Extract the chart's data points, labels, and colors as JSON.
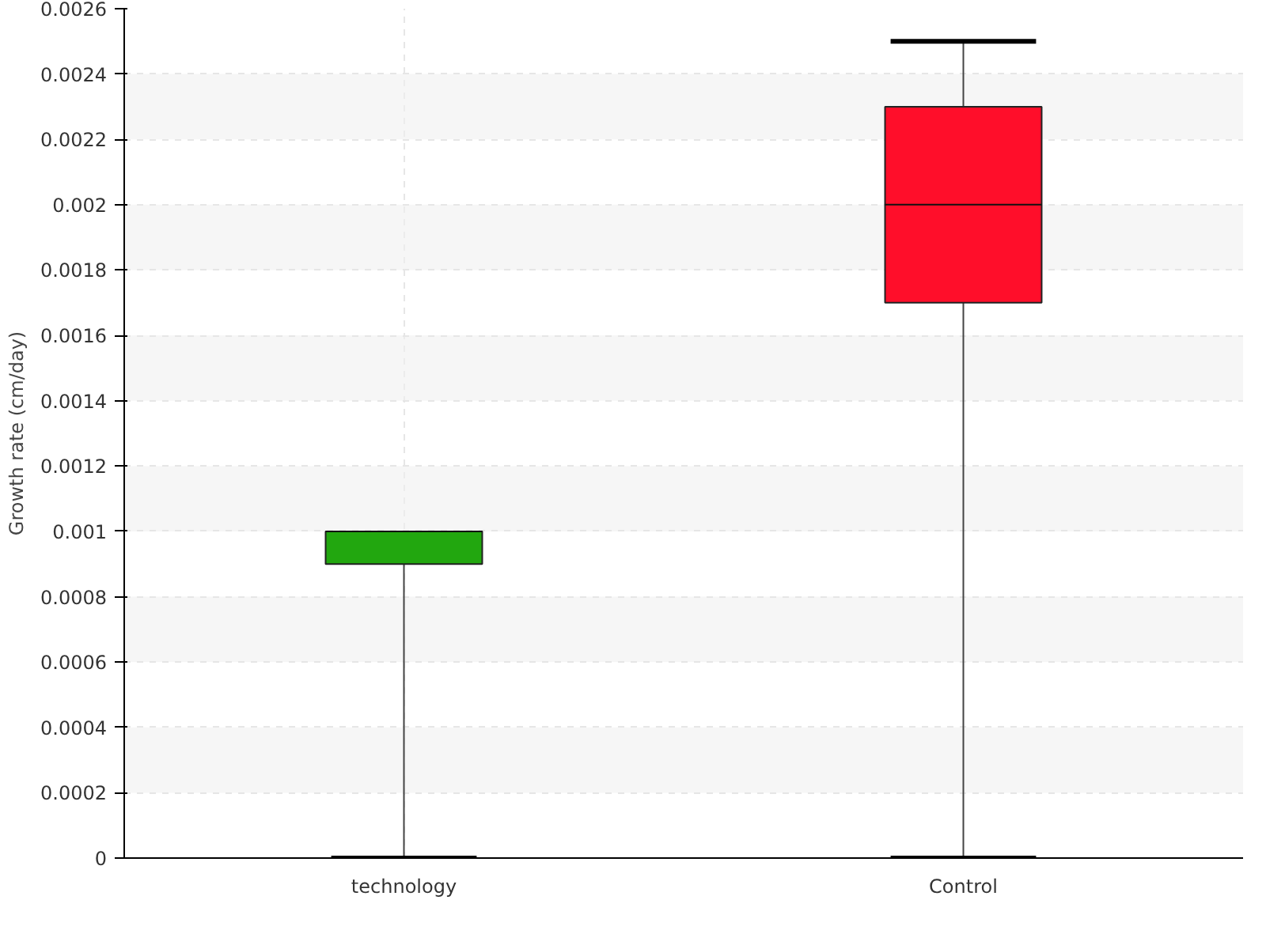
{
  "chart_data": {
    "type": "box",
    "ylabel": "Growth rate (cm/day)",
    "categories": [
      "technology",
      "Control"
    ],
    "boxes": [
      {
        "low": 0,
        "q1": 0.0009,
        "median": 0.001,
        "q3": 0.001,
        "high": 0.001
      },
      {
        "low": 0,
        "q1": 0.0017,
        "median": 0.002,
        "q3": 0.0023,
        "high": 0.0025
      }
    ],
    "colors": [
      "#22a70f",
      "#ff0e2a"
    ],
    "ylim": [
      0,
      0.0026
    ],
    "yticks": [
      0,
      0.0002,
      0.0004,
      0.0006,
      0.0008,
      0.001,
      0.0012,
      0.0014,
      0.0016,
      0.0018,
      0.002,
      0.0022,
      0.0024,
      0.0026
    ],
    "grid": true
  }
}
